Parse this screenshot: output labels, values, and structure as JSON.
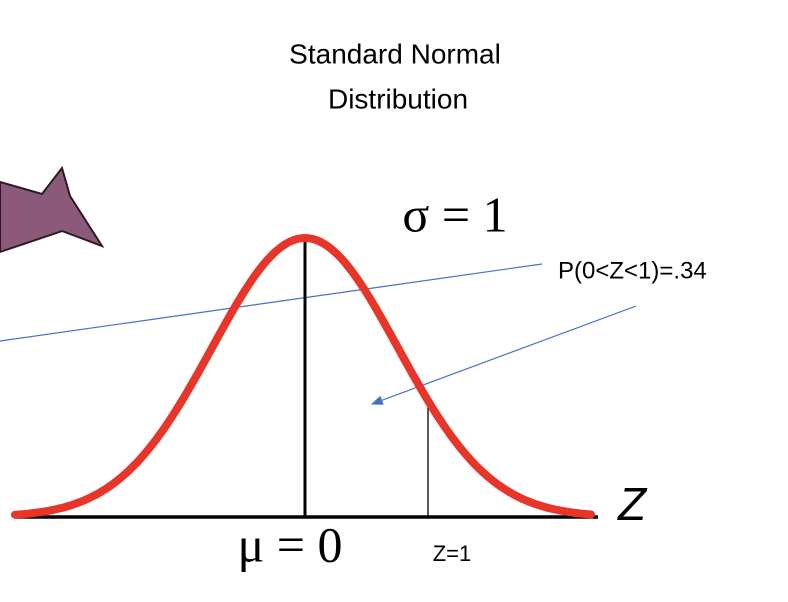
{
  "title_lines": [
    "Standard Normal",
    "Distribution"
  ],
  "sigma_label": "σ = 1",
  "probability_label": "P(0<Z<1)=.34",
  "mu_label": "μ = 0",
  "z1_label": "Z=1",
  "axis_label": "Z"
}
